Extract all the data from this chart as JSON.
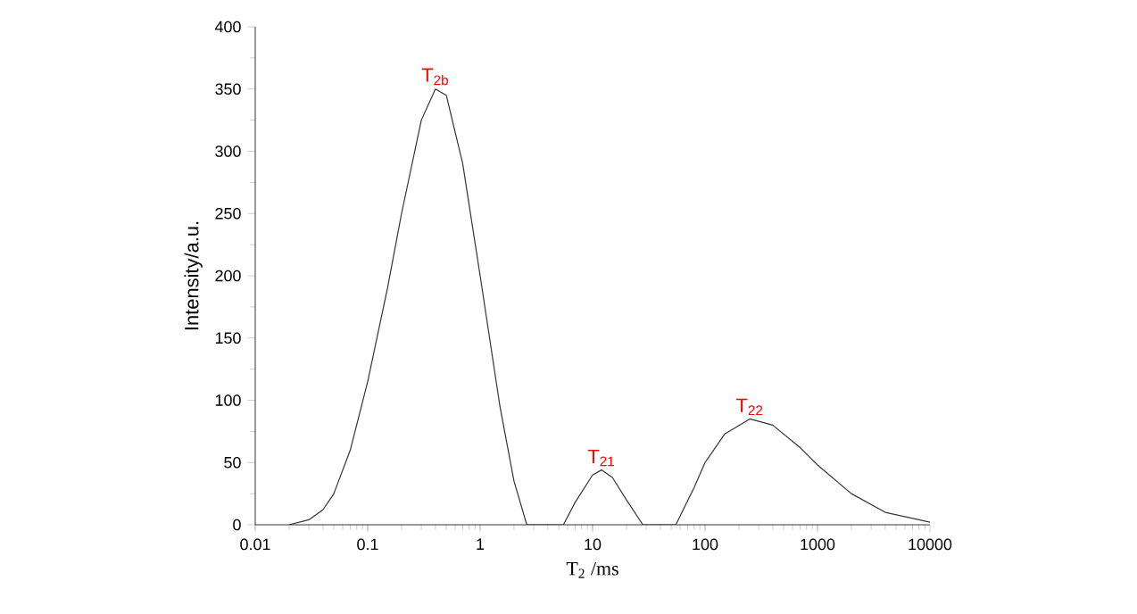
{
  "chart_data": {
    "type": "line",
    "xlabel": "T$_{2}$ /ms",
    "ylabel": "Intensity/a.u.",
    "log": "x",
    "grid": false,
    "marker": "none",
    "line_style": "solid",
    "xlim": [
      0.01,
      10000
    ],
    "ylim": [
      0,
      400
    ],
    "xticks": [
      {
        "value": 0.01,
        "label": "0.01"
      },
      {
        "value": 0.1,
        "label": "0.1"
      },
      1,
      10,
      100,
      1000,
      10000
    ],
    "yticks": [
      0,
      50,
      100,
      150,
      200,
      250,
      300,
      350,
      400
    ],
    "series": [
      {
        "color": "#333333",
        "x": [
          0.02,
          0.03,
          0.04,
          0.05,
          0.07,
          0.1,
          0.15,
          0.2,
          0.3,
          0.4,
          0.5,
          0.7,
          1,
          1.5,
          2,
          2.6,
          5.5,
          7,
          10,
          12,
          15,
          20,
          28,
          55,
          80,
          100,
          150,
          250,
          400,
          700,
          1000,
          2000,
          4000,
          10000
        ],
        "values": [
          0,
          4,
          12,
          25,
          60,
          115,
          190,
          250,
          325,
          350,
          345,
          290,
          200,
          95,
          35,
          0,
          0,
          18,
          40,
          44,
          38,
          20,
          0,
          0,
          30,
          50,
          73,
          85,
          80,
          62,
          48,
          25,
          10,
          2
        ]
      }
    ],
    "annotations": [
      {
        "text": "T$_{2b}$",
        "x": 0.4,
        "y": 350
      },
      {
        "text": "T$_{21}$",
        "x": 12,
        "y": 44
      },
      {
        "text": "T$_{22}$",
        "x": 250,
        "y": 85
      }
    ]
  }
}
